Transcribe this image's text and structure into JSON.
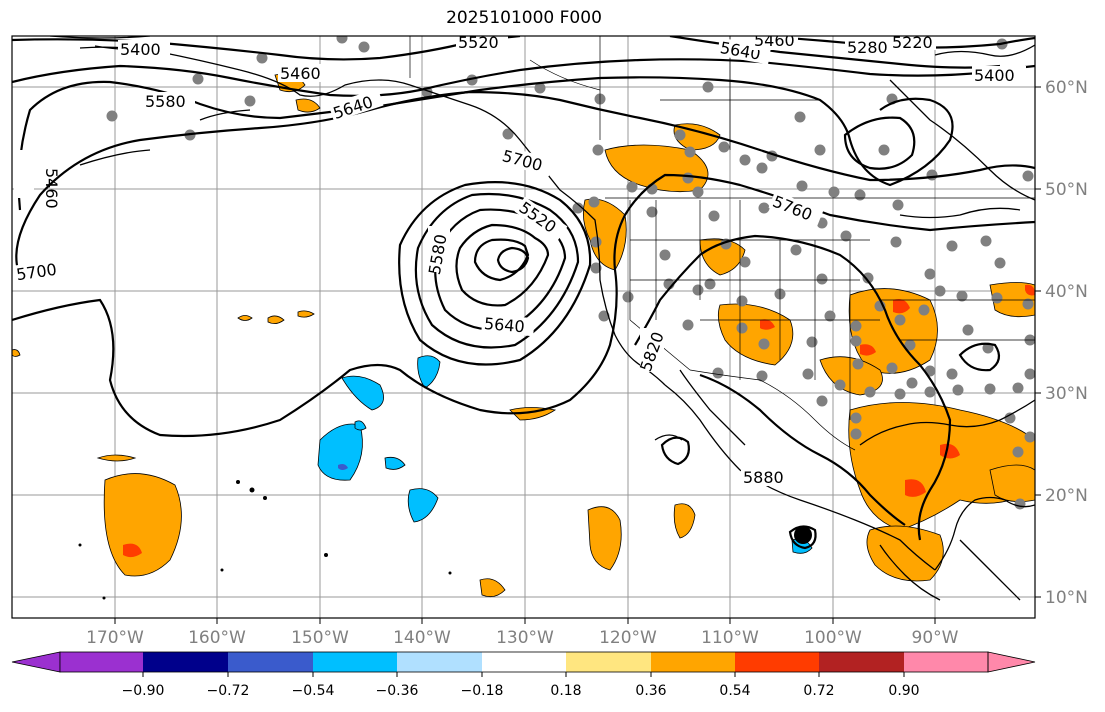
{
  "title": "2025101000 F000",
  "lon_labels": [
    "170°W",
    "160°W",
    "150°W",
    "140°W",
    "130°W",
    "120°W",
    "110°W",
    "100°W",
    "90°W"
  ],
  "lat_labels": [
    "60°N",
    "50°N",
    "40°N",
    "30°N",
    "20°N",
    "10°N"
  ],
  "contour_labels": [
    "5400",
    "5460",
    "5580",
    "5640",
    "5520",
    "5640",
    "5460",
    "5400",
    "5280",
    "5220",
    "5460",
    "5700",
    "5700",
    "5520",
    "5580",
    "5640",
    "5760",
    "5820",
    "5880"
  ],
  "colorbar": {
    "ticks": [
      "−0.90",
      "−0.72",
      "−0.54",
      "−0.36",
      "−0.18",
      "0.18",
      "0.36",
      "0.54",
      "0.72",
      "0.90"
    ],
    "colors": [
      "#9b30d0",
      "#00008b",
      "#3a5bcc",
      "#00bfff",
      "#b0e0ff",
      "#ffffff",
      "#ffe680",
      "#ffa500",
      "#ff3c00",
      "#b22222",
      "#ff88aa"
    ]
  },
  "legend_colors": {
    "positive": "#ffa500",
    "positive_strong": "#ff3c00",
    "negative": "#00bfff",
    "station": "#808080"
  }
}
